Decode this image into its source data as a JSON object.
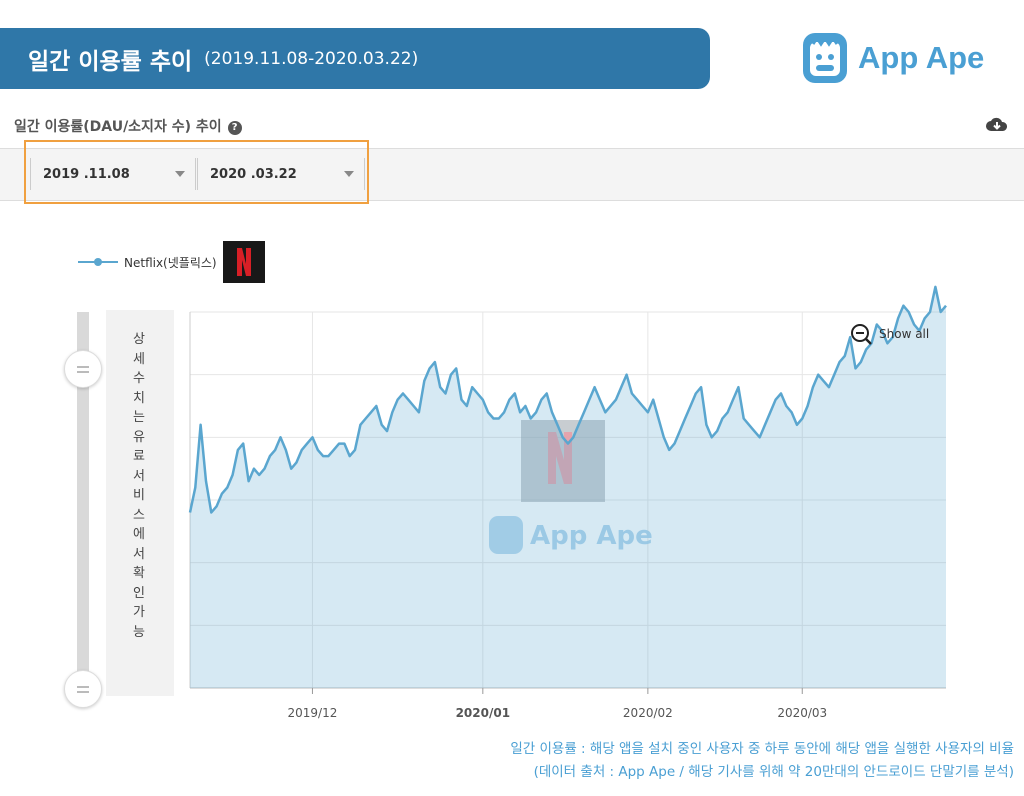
{
  "banner": {
    "title": "일간 이용률 추이",
    "range": "(2019.11.08-2020.03.22)"
  },
  "logo": {
    "text": "App Ape"
  },
  "section": {
    "title": "일간 이용률(DAU/소지자 수) 추이",
    "help_icon": "?"
  },
  "filters": {
    "start_date": "2019 .11.08",
    "end_date": "2020 .03.22"
  },
  "side_panel": {
    "text": "상세수치는 유료서비스에서 확인가능"
  },
  "footnote": {
    "line1": "일간 이용률 : 해당 앱을 설치 중인 사용자 중 하루 동안에 해당 앱을 실행한 사용자의 비율",
    "line2": "(데이터 출처 : App Ape / 해당 기사를 위해 약 20만대의 안드로이드 단말기를 분석)"
  },
  "chart_data": {
    "type": "area",
    "title": "",
    "xlabel": "",
    "ylabel": "",
    "series": [
      {
        "name": "Netflix(넷플릭스)",
        "color": "#5aa6cf",
        "values": [
          0.48,
          0.52,
          0.62,
          0.53,
          0.48,
          0.49,
          0.51,
          0.52,
          0.54,
          0.58,
          0.59,
          0.53,
          0.55,
          0.54,
          0.55,
          0.57,
          0.58,
          0.6,
          0.58,
          0.55,
          0.56,
          0.58,
          0.59,
          0.6,
          0.58,
          0.57,
          0.57,
          0.58,
          0.59,
          0.59,
          0.57,
          0.58,
          0.62,
          0.63,
          0.64,
          0.65,
          0.62,
          0.61,
          0.64,
          0.66,
          0.67,
          0.66,
          0.65,
          0.64,
          0.69,
          0.71,
          0.72,
          0.68,
          0.67,
          0.7,
          0.71,
          0.66,
          0.65,
          0.68,
          0.67,
          0.66,
          0.64,
          0.63,
          0.63,
          0.64,
          0.66,
          0.67,
          0.64,
          0.65,
          0.63,
          0.64,
          0.66,
          0.67,
          0.64,
          0.62,
          0.6,
          0.59,
          0.6,
          0.62,
          0.64,
          0.66,
          0.68,
          0.66,
          0.64,
          0.65,
          0.66,
          0.68,
          0.7,
          0.67,
          0.66,
          0.65,
          0.64,
          0.66,
          0.63,
          0.6,
          0.58,
          0.59,
          0.61,
          0.63,
          0.65,
          0.67,
          0.68,
          0.62,
          0.6,
          0.61,
          0.63,
          0.64,
          0.66,
          0.68,
          0.63,
          0.62,
          0.61,
          0.6,
          0.62,
          0.64,
          0.66,
          0.67,
          0.65,
          0.64,
          0.62,
          0.63,
          0.65,
          0.68,
          0.7,
          0.69,
          0.68,
          0.7,
          0.72,
          0.73,
          0.76,
          0.71,
          0.72,
          0.74,
          0.75,
          0.78,
          0.77,
          0.75,
          0.76,
          0.79,
          0.81,
          0.8,
          0.78,
          0.77,
          0.79,
          0.8,
          0.84,
          0.8,
          0.81
        ]
      }
    ],
    "x_ticks": [
      "2019/12",
      "2020/01",
      "2020/02",
      "2020/03"
    ],
    "x_tick_positions": [
      23,
      55,
      86,
      115
    ],
    "ylim": [
      0.2,
      0.8
    ],
    "grid": true,
    "legend": "top-left",
    "show_all_label": "Show all"
  }
}
